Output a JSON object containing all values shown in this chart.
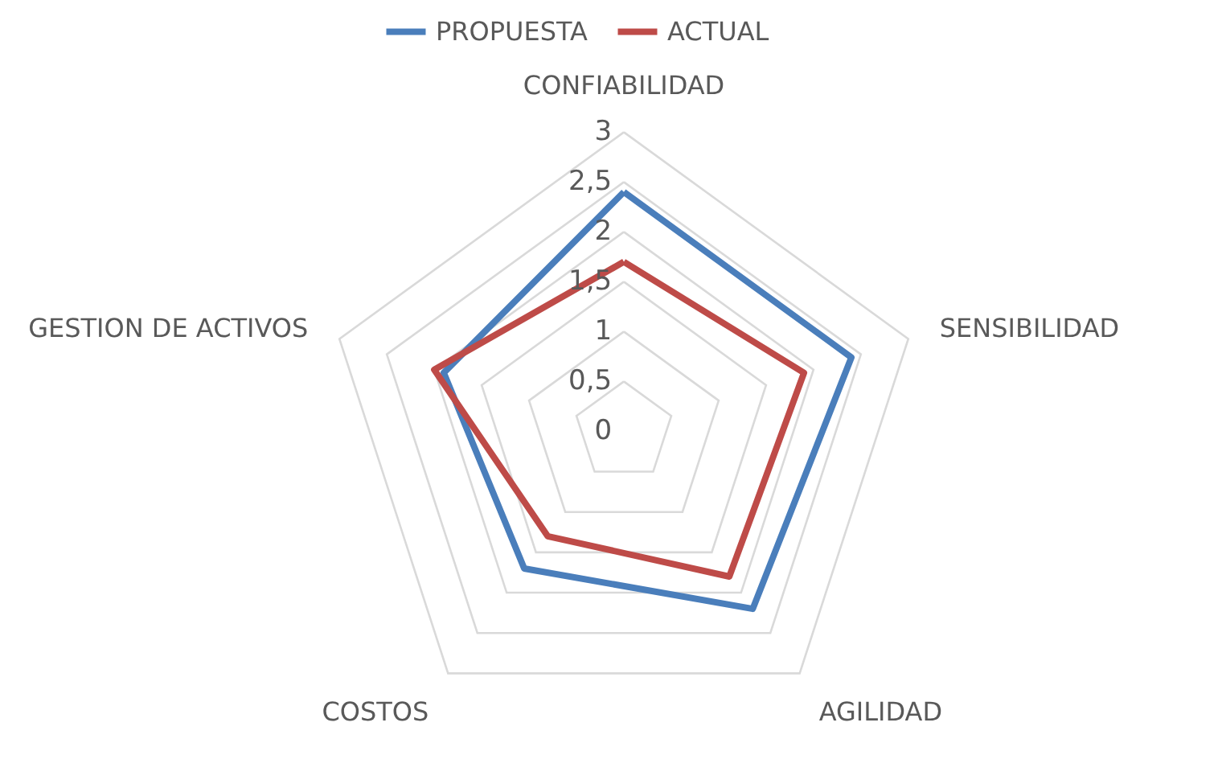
{
  "chart_data": {
    "type": "radar",
    "categories": [
      "CONFIABILIDAD",
      "SENSIBILIDAD",
      "AGILIDAD",
      "COSTOS",
      "GESTION DE ACTIVOS"
    ],
    "series": [
      {
        "name": "PROPUESTA",
        "color": "#4a7ebb",
        "values": [
          2.4,
          2.4,
          2.2,
          1.7,
          1.9
        ]
      },
      {
        "name": "ACTUAL",
        "color": "#be4b48",
        "values": [
          1.7,
          1.9,
          1.8,
          1.3,
          2.0
        ]
      }
    ],
    "ylim": [
      0,
      3
    ],
    "yticks": [
      0,
      {
        "value": 0.5,
        "label": "0,5"
      },
      1,
      {
        "value": 1.5,
        "label": "1,5"
      },
      2,
      {
        "value": 2.5,
        "label": "2,5"
      },
      3
    ],
    "grid": true,
    "legend": "top",
    "line_style": "solid"
  }
}
